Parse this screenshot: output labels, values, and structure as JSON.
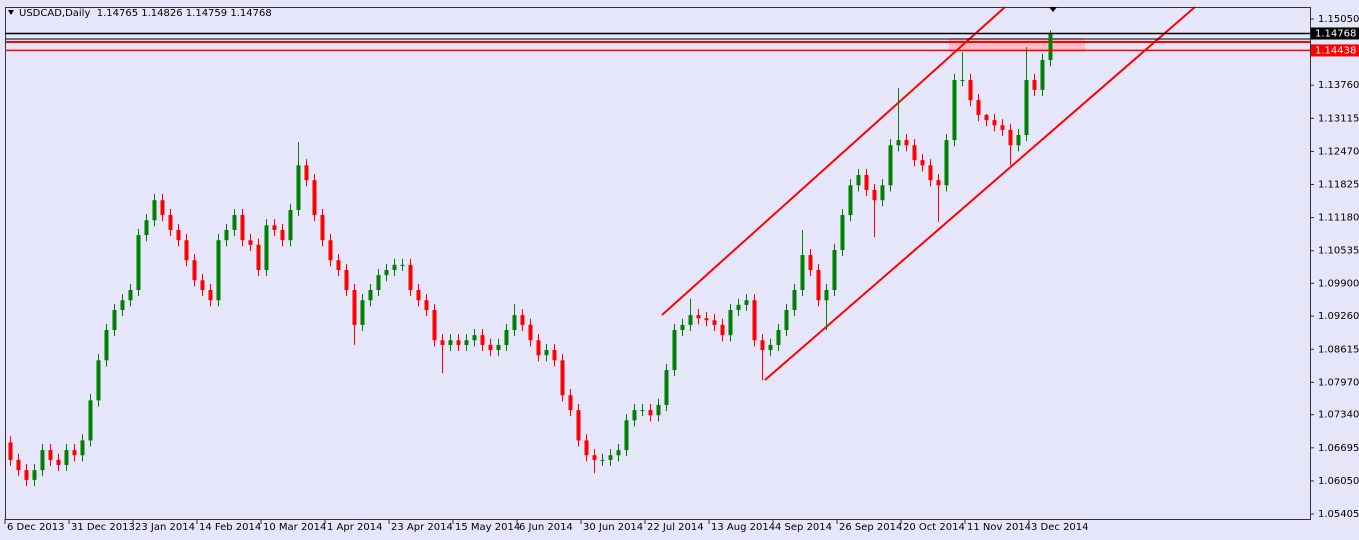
{
  "chart_data": {
    "type": "candlestick",
    "title": "USDCAD,Daily  1.14765 1.14826 1.14759 1.14768",
    "up_color": "#008000",
    "down_color": "#ff0000",
    "ylim": [
      1.05308,
      1.15284
    ],
    "yticks": [
      {
        "value": 1.1505,
        "label": "1.15050"
      },
      {
        "value": 1.1376,
        "label": "1.13760"
      },
      1.13115,
      {
        "value": 1.1247,
        "label": "1.12470"
      },
      1.11825,
      {
        "value": 1.1118,
        "label": "1.11180"
      },
      1.10535,
      {
        "value": 1.099,
        "label": "1.09900"
      },
      {
        "value": 1.0926,
        "label": "1.09260"
      },
      1.08615,
      {
        "value": 1.0797,
        "label": "1.07970"
      },
      {
        "value": 1.0734,
        "label": "1.07340"
      },
      1.06695,
      {
        "value": 1.0605,
        "label": "1.06050"
      },
      1.05405
    ],
    "price_lines": [
      {
        "value": 1.14768,
        "color": "#000000"
      },
      {
        "value": 1.14438,
        "color": "#ff0000"
      }
    ],
    "categories": [
      "6 Dec 2013",
      null,
      null,
      null,
      null,
      null,
      null,
      null,
      "31 Dec 2013",
      null,
      null,
      null,
      null,
      null,
      null,
      null,
      "23 Jan 2014",
      null,
      null,
      null,
      null,
      null,
      null,
      null,
      "14 Feb 2014",
      null,
      null,
      null,
      null,
      null,
      null,
      null,
      "10 Mar 2014",
      null,
      null,
      null,
      null,
      null,
      null,
      null,
      "1 Apr 2014",
      null,
      null,
      null,
      null,
      null,
      null,
      null,
      "23 Apr 2014",
      null,
      null,
      null,
      null,
      null,
      null,
      null,
      "15 May 2014",
      null,
      null,
      null,
      null,
      null,
      null,
      null,
      "6 Jun 2014",
      null,
      null,
      null,
      null,
      null,
      null,
      null,
      "30 Jun 2014",
      null,
      null,
      null,
      null,
      null,
      null,
      null,
      "22 Jul 2014",
      null,
      null,
      null,
      null,
      null,
      null,
      null,
      "13 Aug 2014",
      null,
      null,
      null,
      null,
      null,
      null,
      null,
      "4 Sep 2014",
      null,
      null,
      null,
      null,
      null,
      null,
      null,
      "26 Sep 2014",
      null,
      null,
      null,
      null,
      null,
      null,
      null,
      "20 Oct 2014",
      null,
      null,
      null,
      null,
      null,
      null,
      null,
      "11 Nov 2014",
      null,
      null,
      null,
      null,
      null,
      null,
      null,
      "3 Dec 2014",
      null,
      null
    ],
    "open": [
      1.068,
      1.0646,
      1.0626,
      1.0607,
      1.0626,
      1.0665,
      1.0646,
      1.0636,
      1.0665,
      1.0655,
      1.0684,
      1.0762,
      1.084,
      1.0899,
      1.0938,
      1.0957,
      1.0977,
      1.1084,
      1.1113,
      1.1152,
      1.1123,
      1.1094,
      1.1074,
      1.1035,
      1.0996,
      1.0977,
      1.0957,
      1.1074,
      1.1094,
      1.1123,
      1.1074,
      1.1065,
      1.1016,
      1.1103,
      1.1094,
      1.1074,
      1.1133,
      1.122,
      1.1191,
      1.1123,
      1.1074,
      1.1035,
      1.1016,
      1.0977,
      1.0909,
      1.0957,
      1.0977,
      1.1006,
      1.1016,
      1.1026,
      1.1026,
      1.0977,
      1.0957,
      1.0938,
      1.0879,
      1.087,
      1.0879,
      1.087,
      1.0879,
      1.0889,
      1.087,
      1.086,
      1.087,
      1.0899,
      1.0928,
      1.0909,
      1.0879,
      1.085,
      1.086,
      1.084,
      1.0772,
      1.0743,
      1.0684,
      1.0655,
      1.0646,
      1.0646,
      1.0655,
      1.0665,
      1.0723,
      1.0743,
      1.0743,
      1.0733,
      1.0753,
      1.0821,
      1.0899,
      1.0909,
      1.0928,
      1.0922,
      1.0918,
      1.0909,
      1.0889,
      1.0938,
      1.0948,
      1.0957,
      1.0879,
      1.086,
      1.087,
      1.0899,
      1.0938,
      1.0977,
      1.1045,
      1.1016,
      1.0957,
      1.0977,
      1.1055,
      1.1123,
      1.1181,
      1.1201,
      1.1172,
      1.1152,
      1.1181,
      1.1259,
      1.1269,
      1.1259,
      1.123,
      1.122,
      1.1191,
      1.1181,
      1.1269,
      1.1386,
      1.1386,
      1.1347,
      1.1318,
      1.1308,
      1.1298,
      1.1289,
      1.1259,
      1.1279,
      1.1386,
      1.1367,
      1.1425
    ],
    "high": [
      1.0692,
      1.0658,
      1.0638,
      1.0638,
      1.0677,
      1.0677,
      1.0658,
      1.0677,
      1.0677,
      1.0696,
      1.0774,
      1.0852,
      1.0911,
      1.095,
      1.0969,
      1.0989,
      1.1096,
      1.1125,
      1.1164,
      1.1164,
      1.1135,
      1.1106,
      1.1086,
      1.1047,
      1.1008,
      1.0989,
      1.1086,
      1.1106,
      1.1135,
      1.1135,
      1.1086,
      1.1077,
      1.1115,
      1.1115,
      1.1106,
      1.1145,
      1.1265,
      1.1232,
      1.1203,
      1.1135,
      1.1086,
      1.1047,
      1.1028,
      1.0989,
      1.0969,
      1.0989,
      1.1018,
      1.1028,
      1.1038,
      1.1038,
      1.1038,
      1.0989,
      1.0969,
      1.095,
      1.0891,
      1.0891,
      1.0891,
      1.0891,
      1.0901,
      1.0901,
      1.0882,
      1.0882,
      1.0911,
      1.095,
      1.094,
      1.0921,
      1.0891,
      1.0872,
      1.0872,
      1.0852,
      1.0784,
      1.0755,
      1.0696,
      1.0667,
      1.0658,
      1.0667,
      1.0677,
      1.0735,
      1.0755,
      1.0755,
      1.0755,
      1.0765,
      1.0833,
      1.0911,
      1.0921,
      1.096,
      1.094,
      1.0934,
      1.093,
      1.0921,
      1.095,
      1.096,
      1.0969,
      1.0969,
      1.0891,
      1.0882,
      1.0911,
      1.095,
      1.0989,
      1.1094,
      1.1057,
      1.1028,
      1.0989,
      1.1067,
      1.1135,
      1.1193,
      1.1213,
      1.1213,
      1.1184,
      1.1193,
      1.1271,
      1.137,
      1.1281,
      1.1271,
      1.1242,
      1.1232,
      1.1203,
      1.1281,
      1.1398,
      1.144,
      1.1398,
      1.1359,
      1.132,
      1.132,
      1.131,
      1.1301,
      1.1291,
      1.145,
      1.1398,
      1.1437,
      1.14826
    ],
    "low": [
      1.0634,
      1.0614,
      1.0595,
      1.0595,
      1.0614,
      1.0634,
      1.0624,
      1.0624,
      1.0643,
      1.0643,
      1.0672,
      1.075,
      1.0828,
      1.0887,
      1.0926,
      1.0945,
      1.0965,
      1.1072,
      1.1101,
      1.1111,
      1.1082,
      1.1062,
      1.1023,
      1.0984,
      1.0965,
      1.0945,
      1.0945,
      1.1062,
      1.1082,
      1.1062,
      1.1053,
      1.1004,
      1.1004,
      1.1082,
      1.1062,
      1.1062,
      1.1121,
      1.1179,
      1.1111,
      1.1062,
      1.1023,
      1.1004,
      1.0965,
      1.087,
      1.0897,
      1.0945,
      1.0965,
      1.0994,
      1.1004,
      1.1014,
      1.0965,
      1.0945,
      1.0926,
      1.0867,
      1.0815,
      1.0858,
      1.0858,
      1.0858,
      1.0867,
      1.0858,
      1.0848,
      1.0848,
      1.0858,
      1.0887,
      1.0897,
      1.0867,
      1.0838,
      1.0838,
      1.0828,
      1.076,
      1.0731,
      1.0672,
      1.0643,
      1.062,
      1.0634,
      1.0634,
      1.0643,
      1.0653,
      1.0711,
      1.0731,
      1.0721,
      1.0721,
      1.0741,
      1.0809,
      1.0887,
      1.0897,
      1.091,
      1.0906,
      1.0897,
      1.0877,
      1.0877,
      1.0926,
      1.0936,
      1.0867,
      1.0801,
      1.0848,
      1.0858,
      1.0887,
      1.0926,
      1.0965,
      1.1004,
      1.0945,
      1.0899,
      1.0965,
      1.1043,
      1.1111,
      1.1169,
      1.116,
      1.108,
      1.114,
      1.1169,
      1.1247,
      1.1247,
      1.1218,
      1.1208,
      1.1179,
      1.111,
      1.1169,
      1.1257,
      1.1374,
      1.1335,
      1.1306,
      1.1296,
      1.1286,
      1.1277,
      1.122,
      1.1247,
      1.1267,
      1.1355,
      1.1355,
      1.1413
    ],
    "close": [
      1.0646,
      1.0626,
      1.0607,
      1.0626,
      1.0665,
      1.0646,
      1.0636,
      1.0665,
      1.0655,
      1.0684,
      1.0762,
      1.084,
      1.0899,
      1.0938,
      1.0957,
      1.0977,
      1.1084,
      1.1113,
      1.1152,
      1.1123,
      1.1094,
      1.1074,
      1.1035,
      1.0996,
      1.0977,
      1.0957,
      1.1074,
      1.1094,
      1.1123,
      1.1074,
      1.1065,
      1.1016,
      1.1103,
      1.1094,
      1.1074,
      1.1133,
      1.122,
      1.1191,
      1.1123,
      1.1074,
      1.1035,
      1.1016,
      1.0977,
      1.0909,
      1.0957,
      1.0977,
      1.1006,
      1.1016,
      1.1026,
      1.1026,
      1.0977,
      1.0957,
      1.0938,
      1.0879,
      1.087,
      1.0879,
      1.087,
      1.0879,
      1.0889,
      1.087,
      1.086,
      1.087,
      1.0899,
      1.0928,
      1.0909,
      1.0879,
      1.085,
      1.086,
      1.084,
      1.0772,
      1.0743,
      1.0684,
      1.0655,
      1.0646,
      1.0646,
      1.0655,
      1.0665,
      1.0723,
      1.0743,
      1.0743,
      1.0733,
      1.0753,
      1.0821,
      1.0899,
      1.0909,
      1.0928,
      1.0922,
      1.0918,
      1.0909,
      1.0889,
      1.0938,
      1.0948,
      1.0957,
      1.0879,
      1.086,
      1.087,
      1.0899,
      1.0938,
      1.0977,
      1.1045,
      1.1016,
      1.0957,
      1.0977,
      1.1055,
      1.1123,
      1.1181,
      1.1201,
      1.1172,
      1.1152,
      1.1181,
      1.1259,
      1.1269,
      1.1259,
      1.123,
      1.122,
      1.1191,
      1.1181,
      1.1269,
      1.1386,
      1.1386,
      1.1347,
      1.1318,
      1.1308,
      1.1298,
      1.1289,
      1.1259,
      1.1279,
      1.1386,
      1.1367,
      1.1425,
      1.14768
    ]
  }
}
